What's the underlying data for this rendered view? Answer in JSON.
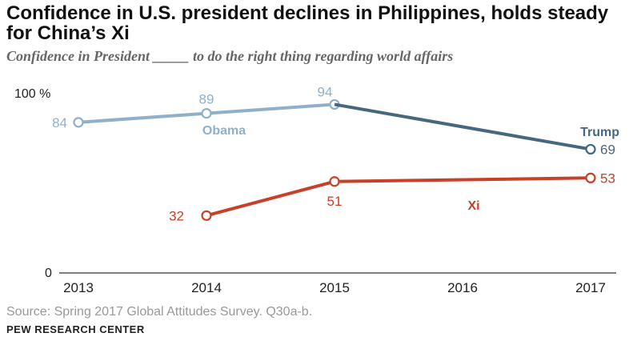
{
  "title": "Confidence in U.S. president declines in Philippines, holds steady for China’s Xi",
  "subtitle": "Confidence in President _____ to do the right thing regarding world affairs",
  "source": "Source: Spring 2017 Global Attitudes Survey. Q30a-b.",
  "brand": "PEW RESEARCH CENTER",
  "chart_data": {
    "type": "line",
    "x": [
      2013,
      2014,
      2015,
      2016,
      2017
    ],
    "x_tick_labels": [
      "2013",
      "2014",
      "2015",
      "2016",
      "2017"
    ],
    "ylim": [
      0,
      100
    ],
    "y_tick_labels": [
      "100 %",
      "0"
    ],
    "grid": false,
    "series": [
      {
        "name": "Obama",
        "x": [
          2013,
          2014,
          2015
        ],
        "values": [
          84,
          89,
          94
        ],
        "labels": [
          "84",
          "89",
          "94"
        ],
        "color": "#8fb0c8"
      },
      {
        "name": "Trump",
        "x": [
          2015,
          2017
        ],
        "values": [
          94,
          69
        ],
        "labels": [
          "",
          "69"
        ],
        "color": "#45677f"
      },
      {
        "name": "Xi",
        "x": [
          2014,
          2015,
          2017
        ],
        "values": [
          32,
          51,
          53
        ],
        "labels": [
          "32",
          "51",
          "53"
        ],
        "color": "#c6402a"
      }
    ]
  }
}
